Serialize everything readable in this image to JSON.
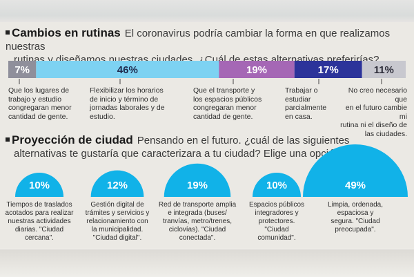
{
  "colors": {
    "gray": "#8f8f9b",
    "light_blue": "#7dd2f2",
    "purple": "#a567b5",
    "navy": "#2c339a",
    "light_gray": "#c8c8cf",
    "circle_blue": "#11b2e8"
  },
  "section1": {
    "title": "Cambios en rutinas",
    "question_line1": "El coronavirus podría cambiar la forma en que realizamos nuestras",
    "question_line2": "rutinas y diseñamos nuestras ciudades. ¿Cuál de estas alternativas preferirías?"
  },
  "section2": {
    "title": "Proyección de ciudad",
    "question_line1": "Pensando en el futuro. ¿cuál de las siguientes",
    "question_line2": "alternativas te gustaría que caracterizara a tu ciudad? Elige una opción."
  },
  "chart_data": [
    {
      "type": "bar",
      "orientation": "horizontal-stacked",
      "title": "Cambios en rutinas",
      "categories": [
        "Que los lugares de trabajo y estudio congregaran menor cantidad de gente.",
        "Flexibilizar los horarios de inicio y término de jornadas laborales y de estudio.",
        "Que el transporte y los espacios públicos congregaran menor cantidad de gente.",
        "Trabajar o estudiar parcialmente en casa.",
        "No creo necesario que en el futuro cambie mi rutina ni el diseño de las ciudades."
      ],
      "values": [
        7,
        46,
        19,
        17,
        11
      ],
      "labels": [
        "7%",
        "46%",
        "19%",
        "17%",
        "11%"
      ],
      "label_lines": [
        [
          "Que los lugares de",
          "trabajo y estudio",
          "congregaran menor",
          "cantidad de gente."
        ],
        [
          "Flexibilizar los horarios",
          "de inicio y término de",
          "jornadas laborales y de",
          "estudio."
        ],
        [
          "Que el transporte y",
          "los espacios públicos",
          "congregaran menor",
          "cantidad de gente."
        ],
        [
          "Trabajar o",
          "estudiar",
          "parcialmente",
          "en casa."
        ],
        [
          "No creo necesario que",
          "en el futuro cambie mi",
          "rutina ni el diseño de",
          "las ciudades."
        ]
      ],
      "colors": [
        "#8f8f9b",
        "#7dd2f2",
        "#a567b5",
        "#2c339a",
        "#c8c8cf"
      ],
      "text_colors": [
        "#ffffff",
        "#1f2a4d",
        "#ffffff",
        "#ffffff",
        "#2e2e3a"
      ],
      "units": "%"
    },
    {
      "type": "semicircle-area",
      "title": "Proyección de ciudad",
      "categories": [
        "Ciudad cercana",
        "Ciudad digital",
        "Ciudad conectada",
        "Ciudad comunidad",
        "Ciudad preocupada"
      ],
      "values": [
        10,
        12,
        19,
        10,
        49
      ],
      "labels": [
        "10%",
        "12%",
        "19%",
        "10%",
        "49%"
      ],
      "label_lines": [
        [
          "Tiempos de traslados",
          "acotados para realizar",
          "nuestras actividades",
          "diarias. \"Ciudad",
          "cercana\"."
        ],
        [
          "Gestión digital de",
          "trámites y servicios y",
          "relacionamiento con",
          "la municipalidad.",
          "\"Ciudad digital\"."
        ],
        [
          "Red de transporte amplia",
          "e integrada (buses/",
          "tranvías, metro/trenes,",
          "ciclovías). \"Ciudad",
          "conectada\"."
        ],
        [
          "Espacios públicos",
          "integradores y",
          "protectores.",
          "\"Ciudad",
          "comunidad\"."
        ],
        [
          "Limpia, ordenada,",
          "espaciosa y",
          "segura. \"Ciudad",
          "preocupada\"."
        ]
      ],
      "color": "#11b2e8",
      "units": "%"
    }
  ]
}
